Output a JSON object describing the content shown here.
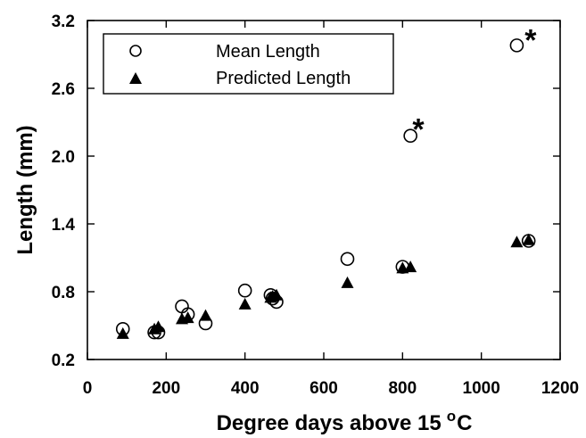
{
  "chart_data": {
    "type": "scatter",
    "xlabel": "Degree days above 15",
    "xlabel_superscript": "o",
    "xlabel_suffix": "C",
    "ylabel": "Length (mm)",
    "xlim": [
      0,
      1200
    ],
    "ylim": [
      0.2,
      3.2
    ],
    "xticks": [
      0,
      200,
      400,
      600,
      800,
      1000,
      1200
    ],
    "yticks": [
      0.2,
      0.8,
      1.4,
      2.0,
      2.6,
      3.2
    ],
    "ytick_labels": [
      "0.2",
      "0.8",
      "1.4",
      "2.0",
      "2.6",
      "3.2"
    ],
    "legend_position": "top-left",
    "series": [
      {
        "name": "Mean Length",
        "marker": "open-circle",
        "points": [
          [
            90,
            0.47
          ],
          [
            170,
            0.44
          ],
          [
            180,
            0.44
          ],
          [
            240,
            0.67
          ],
          [
            255,
            0.6
          ],
          [
            300,
            0.52
          ],
          [
            400,
            0.81
          ],
          [
            465,
            0.77
          ],
          [
            470,
            0.74
          ],
          [
            480,
            0.71
          ],
          [
            660,
            1.09
          ],
          [
            800,
            1.02
          ],
          [
            820,
            2.18
          ],
          [
            1090,
            2.98
          ],
          [
            1120,
            1.25
          ]
        ]
      },
      {
        "name": "Predicted Length",
        "marker": "filled-triangle",
        "points": [
          [
            90,
            0.43
          ],
          [
            170,
            0.47
          ],
          [
            180,
            0.49
          ],
          [
            240,
            0.56
          ],
          [
            255,
            0.57
          ],
          [
            300,
            0.59
          ],
          [
            400,
            0.69
          ],
          [
            465,
            0.75
          ],
          [
            470,
            0.76
          ],
          [
            480,
            0.77
          ],
          [
            660,
            0.88
          ],
          [
            800,
            1.01
          ],
          [
            820,
            1.02
          ],
          [
            1090,
            1.24
          ],
          [
            1120,
            1.26
          ]
        ]
      }
    ],
    "annotations": [
      {
        "text": "*",
        "x": 840,
        "y": 2.32
      },
      {
        "text": "*",
        "x": 1125,
        "y": 3.11
      }
    ]
  }
}
